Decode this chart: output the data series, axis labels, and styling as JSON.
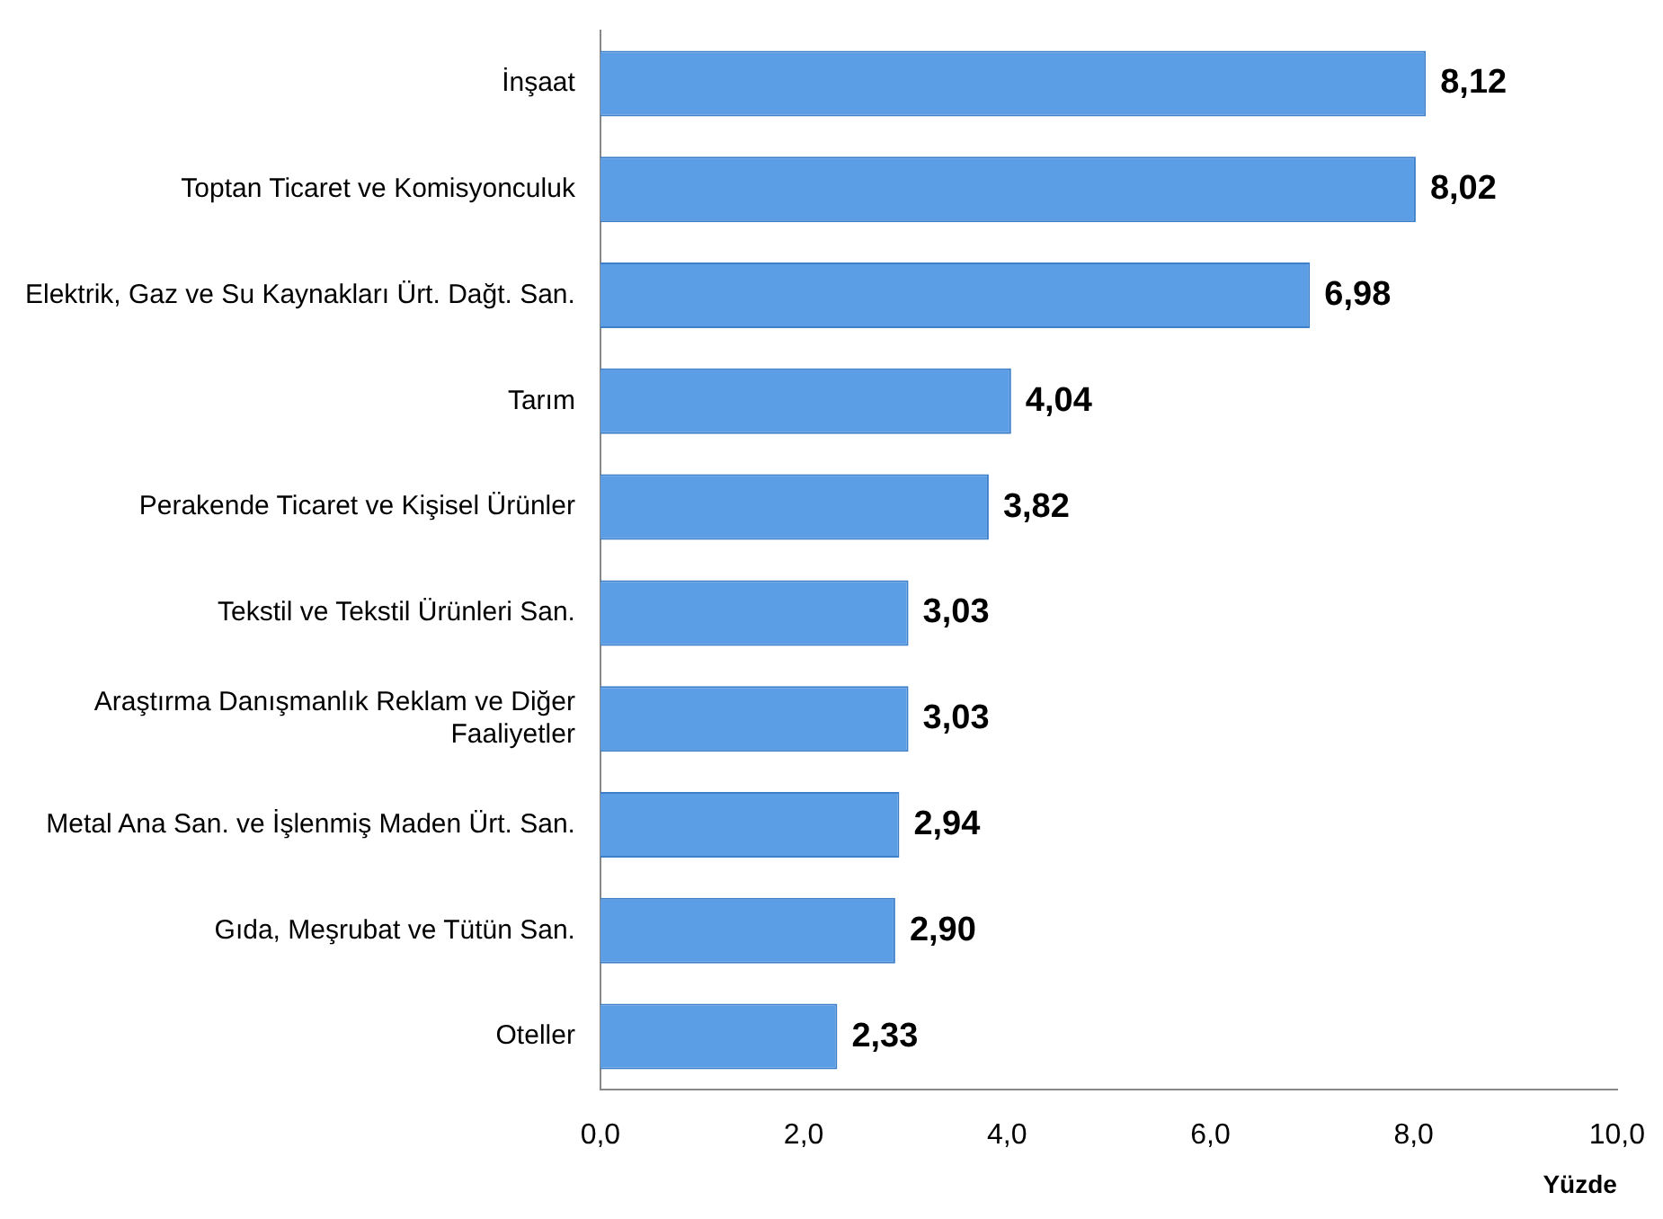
{
  "chart_data": {
    "type": "bar",
    "orientation": "horizontal",
    "xlabel": "Yüzde",
    "categories": [
      "İnşaat",
      "Toptan Ticaret ve Komisyonculuk",
      "Elektrik, Gaz ve Su Kaynakları Ürt. Dağt. San.",
      "Tarım",
      "Perakende Ticaret ve Kişisel Ürünler",
      "Tekstil ve Tekstil Ürünleri San.",
      "Araştırma Danışmanlık Reklam ve Diğer Faaliyetler",
      "Metal Ana San. ve İşlenmiş Maden Ürt. San.",
      "Gıda, Meşrubat ve Tütün San.",
      "Oteller"
    ],
    "values": [
      8.12,
      8.02,
      6.98,
      4.04,
      3.82,
      3.03,
      3.03,
      2.94,
      2.9,
      2.33
    ],
    "value_labels": [
      "8,12",
      "8,02",
      "6,98",
      "4,04",
      "3,82",
      "3,03",
      "3,03",
      "2,94",
      "2,90",
      "2,33"
    ],
    "color": "#5b9ee6",
    "xlim": [
      0,
      10
    ],
    "xticks": [
      {
        "value": 0,
        "label": "0,0"
      },
      {
        "value": 2,
        "label": "2,0"
      },
      {
        "value": 4,
        "label": "4,0"
      },
      {
        "value": 6,
        "label": "6,0"
      },
      {
        "value": 8,
        "label": "8,0"
      },
      {
        "value": 10,
        "label": "10,0"
      }
    ],
    "grid": false,
    "legend": false
  }
}
